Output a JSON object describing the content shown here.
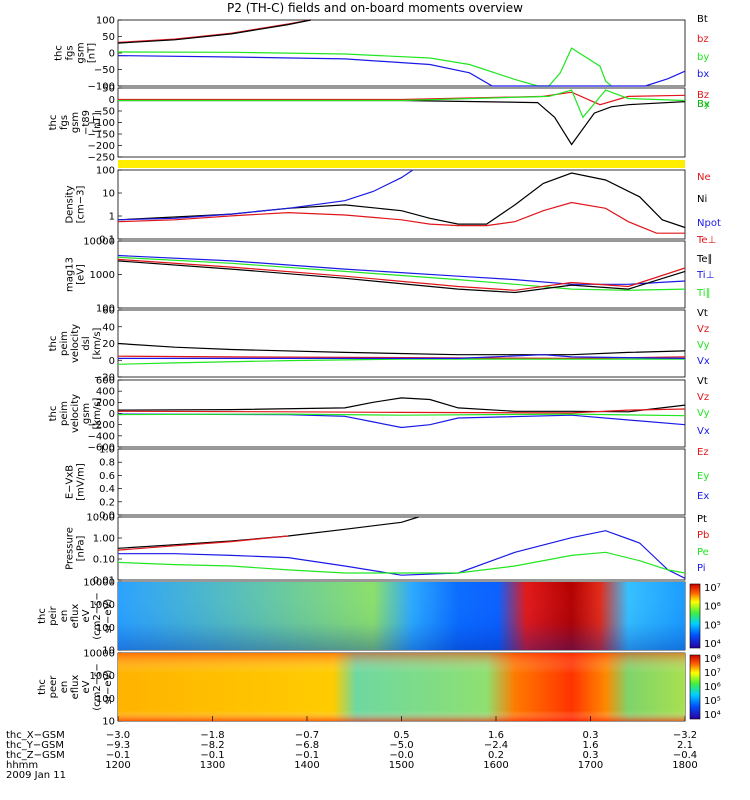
{
  "title": "P2 (TH-C) fields and on-board moments overview",
  "colors": {
    "black": "#000000",
    "red": "#e0161b",
    "green": "#22e622",
    "blue": "#1a1ae6",
    "yellow": "#ffee00",
    "darkgreen": "#16b016"
  },
  "chart_data": [
    {
      "type": "line",
      "ylabel_lines": [
        "thc",
        "fgs",
        "gsm",
        "[nT]"
      ],
      "yticks": [
        "100",
        "50",
        "0",
        "−50",
        "−100"
      ],
      "legend": [
        {
          "label": "Bt",
          "color": "#000000"
        },
        {
          "label": "bz",
          "color": "#e0161b"
        },
        {
          "label": "by",
          "color": "#22e622"
        },
        {
          "label": "bx",
          "color": "#1a1ae6"
        }
      ],
      "ylim": [
        -100,
        100
      ],
      "series": [
        {
          "color": "#e0161b",
          "x": [
            0,
            0.1,
            0.2,
            0.3,
            0.34
          ],
          "y": [
            32,
            42,
            60,
            88,
            100
          ]
        },
        {
          "color": "#000000",
          "x": [
            0,
            0.1,
            0.2,
            0.3,
            0.34
          ],
          "y": [
            30,
            40,
            58,
            86,
            100
          ]
        },
        {
          "color": "#22e622",
          "x": [
            0,
            0.2,
            0.4,
            0.55,
            0.62,
            0.7,
            0.74,
            0.76,
            0.78,
            0.8,
            0.85,
            0.86,
            0.87
          ],
          "y": [
            3,
            2,
            -3,
            -15,
            -35,
            -80,
            -100,
            -100,
            -60,
            15,
            -40,
            -85,
            -100
          ]
        },
        {
          "color": "#1a1ae6",
          "x": [
            0,
            0.2,
            0.4,
            0.55,
            0.62,
            0.66,
            0.93,
            0.97,
            1.0
          ],
          "y": [
            -8,
            -12,
            -18,
            -35,
            -60,
            -100,
            -100,
            -78,
            -55
          ]
        }
      ]
    },
    {
      "type": "line",
      "ylabel_lines": [
        "thc",
        "fgs",
        "gsm",
        "−t89",
        "[nT]"
      ],
      "yticks": [
        "50",
        "0",
        "−50",
        "−100",
        "−150",
        "−200",
        "−250"
      ],
      "legend": [
        {
          "label": "Bz",
          "color": "#e0161b"
        },
        {
          "label": "By",
          "color": "#22e622"
        },
        {
          "label": "Bx",
          "color": "#16b016"
        }
      ],
      "ylim": [
        -270,
        60
      ],
      "series": [
        {
          "color": "#000000",
          "x": [
            0,
            0.5,
            0.74,
            0.77,
            0.8,
            0.84,
            0.87,
            0.9,
            1.0
          ],
          "y": [
            0,
            0,
            -10,
            -80,
            -210,
            -60,
            -30,
            -20,
            -5
          ]
        },
        {
          "color": "#e0161b",
          "x": [
            0,
            0.5,
            0.75,
            0.8,
            0.85,
            0.9,
            1.0
          ],
          "y": [
            5,
            5,
            20,
            40,
            -20,
            20,
            25
          ]
        },
        {
          "color": "#22e622",
          "x": [
            0,
            0.5,
            0.76,
            0.8,
            0.82,
            0.86,
            0.9,
            1.0
          ],
          "y": [
            0,
            0,
            20,
            50,
            -80,
            50,
            10,
            0
          ]
        }
      ]
    },
    {
      "type": "line",
      "ylabel_lines": [
        "Density",
        "[cm−3]"
      ],
      "yticks": [
        "100",
        "10",
        "1",
        "0.1"
      ],
      "legend": [
        {
          "label": "Ne",
          "color": "#e0161b"
        },
        {
          "label": "Ni",
          "color": "#000000"
        },
        {
          "label": "Npot",
          "color": "#1a1ae6"
        }
      ],
      "ylim": [
        0.05,
        200
      ],
      "log": true,
      "series": [
        {
          "color": "#000000",
          "x": [
            0,
            0.1,
            0.2,
            0.3,
            0.4,
            0.5,
            0.55,
            0.6,
            0.65,
            0.7,
            0.75,
            0.8,
            0.86,
            0.92,
            0.96,
            1.0
          ],
          "y": [
            0.5,
            0.7,
            1.0,
            2.0,
            3.0,
            1.5,
            0.6,
            0.3,
            0.3,
            3,
            40,
            140,
            60,
            8,
            0.5,
            0.2
          ]
        },
        {
          "color": "#e0161b",
          "x": [
            0,
            0.1,
            0.2,
            0.3,
            0.4,
            0.5,
            0.55,
            0.6,
            0.65,
            0.7,
            0.75,
            0.8,
            0.86,
            0.9,
            0.95,
            1.0
          ],
          "y": [
            0.4,
            0.5,
            0.8,
            1.2,
            0.9,
            0.5,
            0.3,
            0.25,
            0.25,
            0.4,
            1.5,
            4,
            2,
            0.4,
            0.1,
            0.1
          ]
        },
        {
          "color": "#1a1ae6",
          "x": [
            0,
            0.1,
            0.2,
            0.3,
            0.4,
            0.45,
            0.5,
            0.52
          ],
          "y": [
            0.5,
            0.6,
            1.0,
            2.0,
            5,
            15,
            80,
            200
          ]
        }
      ]
    },
    {
      "type": "line",
      "ylabel_lines": [
        "mag13",
        "[eV]"
      ],
      "yticks": [
        "10000",
        "1000",
        "100"
      ],
      "legend": [
        {
          "label": "Te⊥",
          "color": "#e0161b"
        },
        {
          "label": "Te∥",
          "color": "#000000"
        },
        {
          "label": "Ti⊥",
          "color": "#1a1ae6"
        },
        {
          "label": "Ti∥",
          "color": "#22e622"
        }
      ],
      "ylim": [
        40,
        12000
      ],
      "log": true,
      "series": [
        {
          "color": "#1a1ae6",
          "x": [
            0,
            0.2,
            0.4,
            0.6,
            0.7,
            0.8,
            0.9,
            1.0
          ],
          "y": [
            3500,
            2200,
            1100,
            600,
            450,
            300,
            300,
            400
          ]
        },
        {
          "color": "#22e622",
          "x": [
            0,
            0.2,
            0.4,
            0.6,
            0.7,
            0.8,
            0.9,
            1.0
          ],
          "y": [
            3000,
            1800,
            900,
            450,
            300,
            200,
            180,
            200
          ]
        },
        {
          "color": "#e0161b",
          "x": [
            0,
            0.2,
            0.4,
            0.6,
            0.7,
            0.8,
            0.9,
            1.0
          ],
          "y": [
            2500,
            1300,
            600,
            250,
            180,
            350,
            250,
            1200
          ]
        },
        {
          "color": "#000000",
          "x": [
            0,
            0.2,
            0.4,
            0.6,
            0.7,
            0.8,
            0.9,
            1.0
          ],
          "y": [
            2200,
            1100,
            500,
            200,
            150,
            280,
            200,
            900
          ]
        }
      ]
    },
    {
      "type": "line",
      "ylabel_lines": [
        "thc",
        "peim",
        "velocity",
        "dsl",
        "[km/s]"
      ],
      "yticks": [
        "60",
        "40",
        "20",
        "0",
        "−20"
      ],
      "legend": [
        {
          "label": "Vt",
          "color": "#000000"
        },
        {
          "label": "Vz",
          "color": "#e0161b"
        },
        {
          "label": "Vy",
          "color": "#22e622"
        },
        {
          "label": "Vx",
          "color": "#1a1ae6"
        }
      ],
      "ylim": [
        -25,
        65
      ],
      "series": [
        {
          "color": "#000000",
          "x": [
            0,
            0.1,
            0.2,
            0.4,
            0.6,
            0.8,
            0.9,
            1.0
          ],
          "y": [
            20,
            15,
            12,
            8,
            5,
            5,
            8,
            10
          ]
        },
        {
          "color": "#e0161b",
          "x": [
            0,
            0.2,
            0.5,
            0.8,
            1.0
          ],
          "y": [
            3,
            2,
            1,
            0,
            2
          ]
        },
        {
          "color": "#22e622",
          "x": [
            0,
            0.1,
            0.3,
            0.5,
            0.8,
            1.0
          ],
          "y": [
            -8,
            -6,
            -3,
            -1,
            -1,
            -1
          ]
        },
        {
          "color": "#1a1ae6",
          "x": [
            0,
            0.3,
            0.6,
            0.75,
            0.8,
            1.0
          ],
          "y": [
            0,
            0,
            0,
            5,
            2,
            0
          ]
        }
      ]
    },
    {
      "type": "line",
      "ylabel_lines": [
        "thc",
        "peim",
        "velocity",
        "gsm",
        "[km/s]"
      ],
      "yticks": [
        "600",
        "400",
        "200",
        "0",
        "−200",
        "−400",
        "−600"
      ],
      "legend": [
        {
          "label": "Vt",
          "color": "#000000"
        },
        {
          "label": "Vz",
          "color": "#e0161b"
        },
        {
          "label": "Vy",
          "color": "#22e622"
        },
        {
          "label": "Vx",
          "color": "#1a1ae6"
        }
      ],
      "ylim": [
        -600,
        600
      ],
      "series": [
        {
          "color": "#000000",
          "x": [
            0,
            0.2,
            0.4,
            0.45,
            0.5,
            0.55,
            0.6,
            0.7,
            0.8,
            0.9,
            1.0
          ],
          "y": [
            60,
            70,
            100,
            200,
            280,
            250,
            100,
            40,
            40,
            30,
            150
          ]
        },
        {
          "color": "#e0161b",
          "x": [
            0,
            0.3,
            0.5,
            0.8,
            0.9,
            1.0
          ],
          "y": [
            40,
            30,
            20,
            10,
            60,
            80
          ]
        },
        {
          "color": "#1a1ae6",
          "x": [
            0,
            0.3,
            0.4,
            0.45,
            0.5,
            0.55,
            0.6,
            0.8,
            1.0
          ],
          "y": [
            -10,
            -20,
            -50,
            -150,
            -250,
            -200,
            -80,
            -30,
            -200
          ]
        },
        {
          "color": "#22e622",
          "x": [
            0,
            0.3,
            0.5,
            0.8,
            1.0
          ],
          "y": [
            -20,
            -10,
            -30,
            -10,
            -40
          ]
        }
      ]
    },
    {
      "type": "line",
      "ylabel_lines": [
        "E−VxB",
        "[mV/m]"
      ],
      "yticks": [
        "1.0",
        "0.8",
        "0.6",
        "0.4",
        "0.2",
        "0.0"
      ],
      "legend": [
        {
          "label": "Ez",
          "color": "#e0161b"
        },
        {
          "label": "Ey",
          "color": "#22e622"
        },
        {
          "label": "Ex",
          "color": "#1a1ae6"
        }
      ],
      "ylim": [
        0,
        1
      ],
      "series": []
    },
    {
      "type": "line",
      "ylabel_lines": [
        "Pressure",
        "[nPa]"
      ],
      "yticks": [
        "10.00",
        "1.00",
        "0.10",
        "0.01"
      ],
      "legend": [
        {
          "label": "Pt",
          "color": "#000000"
        },
        {
          "label": "Pb",
          "color": "#e0161b"
        },
        {
          "label": "Pe",
          "color": "#22e622"
        },
        {
          "label": "Pi",
          "color": "#1a1ae6"
        }
      ],
      "ylim": [
        0.008,
        30
      ],
      "log": true,
      "series": [
        {
          "color": "#000000",
          "x": [
            0,
            0.1,
            0.2,
            0.3,
            0.4,
            0.5,
            0.53
          ],
          "y": [
            0.5,
            0.8,
            1.3,
            2.5,
            6,
            15,
            30
          ]
        },
        {
          "color": "#e0161b",
          "x": [
            0,
            0.1,
            0.2,
            0.3
          ],
          "y": [
            0.4,
            0.7,
            1.2,
            2.5
          ]
        },
        {
          "color": "#1a1ae6",
          "x": [
            0,
            0.1,
            0.2,
            0.3,
            0.4,
            0.5,
            0.6,
            0.7,
            0.8,
            0.86,
            0.92,
            0.97,
            1.0
          ],
          "y": [
            0.25,
            0.25,
            0.2,
            0.15,
            0.05,
            0.015,
            0.02,
            0.3,
            2,
            5,
            1,
            0.03,
            0.01
          ]
        },
        {
          "color": "#22e622",
          "x": [
            0,
            0.1,
            0.2,
            0.3,
            0.4,
            0.5,
            0.6,
            0.7,
            0.8,
            0.86,
            0.92,
            0.97,
            1.0
          ],
          "y": [
            0.08,
            0.06,
            0.05,
            0.03,
            0.02,
            0.02,
            0.02,
            0.05,
            0.2,
            0.3,
            0.1,
            0.03,
            0.02
          ]
        }
      ]
    },
    {
      "type": "heatmap",
      "ylabel_lines": [
        "thc",
        "peir",
        "en",
        "eflux",
        "eV",
        "(cm2−s−",
        "sr−eV)"
      ],
      "yticks": [
        "10000",
        "1000",
        "100",
        "10"
      ],
      "colorbar_ticks": [
        "10⁷",
        "10⁶",
        "10⁵",
        "10⁴"
      ]
    },
    {
      "type": "heatmap",
      "ylabel_lines": [
        "thc",
        "peer",
        "en",
        "eflux",
        "eV",
        "(cm2−s−",
        "sr−eV)"
      ],
      "yticks": [
        "10000",
        "1000",
        "100",
        "10"
      ],
      "colorbar_ticks": [
        "10⁸",
        "10⁷",
        "10⁶",
        "10⁵",
        "10⁴"
      ]
    }
  ],
  "xaxis": {
    "row_labels": [
      "thc_X−GSM",
      "thc_Y−GSM",
      "thc_Z−GSM",
      "hhmm",
      "2009 Jan 11"
    ],
    "columns": [
      [
        "−3.0",
        "−9.3",
        "−0.1",
        "1200"
      ],
      [
        "−1.8",
        "−8.2",
        "−0.1",
        "1300"
      ],
      [
        "−0.7",
        "−6.8",
        "−0.1",
        "1400"
      ],
      [
        "0.5",
        "−5.0",
        "−0.0",
        "1500"
      ],
      [
        "1.6",
        "−2.4",
        "0.2",
        "1600"
      ],
      [
        "0.3",
        "1.6",
        "0.3",
        "1700"
      ],
      [
        "−3.2",
        "2.1",
        "−0.4",
        "1800"
      ]
    ]
  }
}
